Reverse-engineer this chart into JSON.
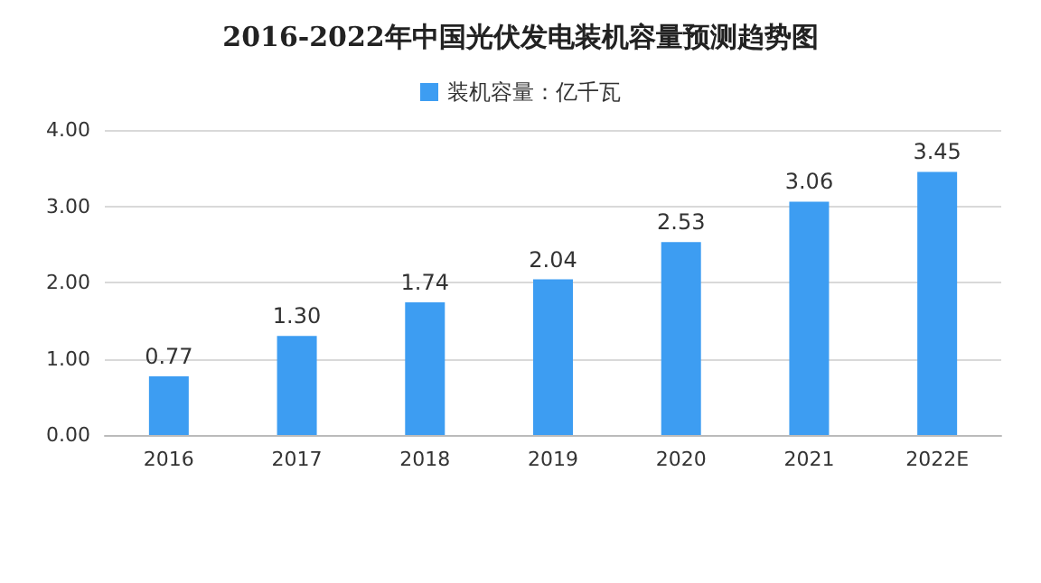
{
  "chart_data": {
    "type": "bar",
    "title": "2016-2022年中国光伏发电装机容量预测趋势图",
    "categories": [
      "2016",
      "2017",
      "2018",
      "2019",
      "2020",
      "2021",
      "2022E"
    ],
    "series": [
      {
        "name": "装机容量：亿千瓦",
        "color": "#3d9df2",
        "values": [
          0.77,
          1.3,
          1.74,
          2.04,
          2.53,
          3.06,
          3.45
        ],
        "value_labels": [
          "0.77",
          "1.30",
          "1.74",
          "2.04",
          "2.53",
          "3.06",
          "3.45"
        ]
      }
    ],
    "ylim": [
      0,
      4
    ],
    "yticks": [
      {
        "value": 0,
        "label": "0.00"
      },
      {
        "value": 1,
        "label": "1.00"
      },
      {
        "value": 2,
        "label": "2.00"
      },
      {
        "value": 3,
        "label": "3.00"
      },
      {
        "value": 4,
        "label": "4.00"
      }
    ],
    "grid": "y",
    "legend": "top"
  }
}
